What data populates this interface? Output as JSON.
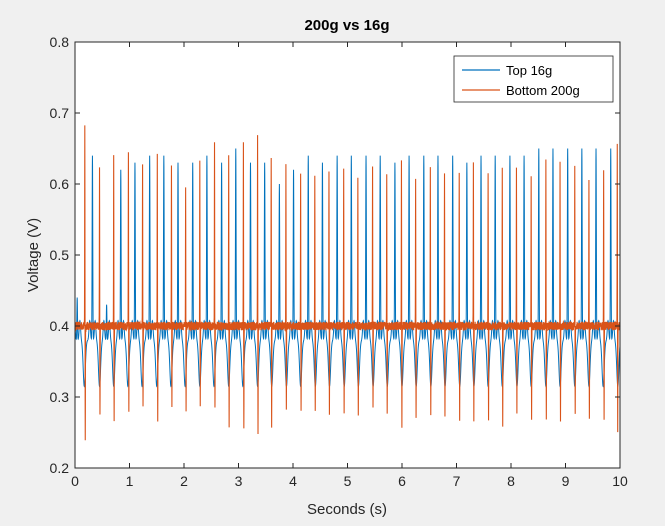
{
  "chart_data": {
    "type": "line",
    "title": "200g vs 16g",
    "xlabel": "Seconds (s)",
    "ylabel": "Voltage (V)",
    "xlim": [
      0,
      10
    ],
    "ylim": [
      0.2,
      0.8
    ],
    "xticks": [
      "0",
      "1",
      "2",
      "3",
      "4",
      "5",
      "6",
      "7",
      "8",
      "9",
      "10"
    ],
    "yticks": [
      "0.2",
      "0.3",
      "0.4",
      "0.5",
      "0.6",
      "0.7",
      "0.8"
    ],
    "grid": false,
    "legend": "top-right",
    "series": [
      {
        "name": "Top 16g",
        "color": "#0072BD",
        "baseline": 0.38,
        "trough": 0.315,
        "ripple_peak": 0.43,
        "peak_times": [
          0.04,
          0.32,
          0.58,
          0.84,
          1.1,
          1.37,
          1.63,
          1.89,
          2.16,
          2.42,
          2.69,
          2.95,
          3.22,
          3.48,
          3.75,
          4.01,
          4.28,
          4.54,
          4.81,
          5.07,
          5.34,
          5.6,
          5.87,
          6.13,
          6.4,
          6.66,
          6.93,
          7.19,
          7.45,
          7.71,
          7.98,
          8.24,
          8.51,
          8.77,
          9.04,
          9.3,
          9.56,
          9.83
        ],
        "peak_values": [
          0.44,
          0.64,
          0.43,
          0.62,
          0.63,
          0.64,
          0.64,
          0.63,
          0.63,
          0.64,
          0.63,
          0.65,
          0.63,
          0.63,
          0.6,
          0.62,
          0.64,
          0.63,
          0.64,
          0.64,
          0.64,
          0.64,
          0.63,
          0.64,
          0.64,
          0.64,
          0.64,
          0.63,
          0.64,
          0.64,
          0.64,
          0.64,
          0.65,
          0.65,
          0.65,
          0.65,
          0.65,
          0.65
        ]
      },
      {
        "name": "Bottom 200g",
        "color": "#D95319",
        "baseline": 0.4,
        "noise": 0.006,
        "spike_times": [
          0.18,
          0.45,
          0.71,
          0.98,
          1.24,
          1.51,
          1.77,
          2.03,
          2.29,
          2.56,
          2.82,
          3.09,
          3.35,
          3.6,
          3.87,
          4.14,
          4.4,
          4.66,
          4.93,
          5.19,
          5.46,
          5.72,
          5.99,
          6.25,
          6.52,
          6.78,
          7.05,
          7.31,
          7.58,
          7.84,
          8.1,
          8.37,
          8.64,
          8.9,
          9.17,
          9.43,
          9.7,
          9.95
        ],
        "spike_max": [
          0.68,
          0.63,
          0.64,
          0.64,
          0.63,
          0.64,
          0.63,
          0.6,
          0.63,
          0.66,
          0.64,
          0.66,
          0.67,
          0.64,
          0.63,
          0.61,
          0.61,
          0.62,
          0.62,
          0.61,
          0.62,
          0.62,
          0.63,
          0.61,
          0.62,
          0.62,
          0.62,
          0.63,
          0.62,
          0.62,
          0.62,
          0.61,
          0.63,
          0.63,
          0.63,
          0.61,
          0.62,
          0.66
        ],
        "spike_min": [
          0.24,
          0.27,
          0.27,
          0.28,
          0.28,
          0.27,
          0.29,
          0.28,
          0.29,
          0.28,
          0.26,
          0.25,
          0.25,
          0.25,
          0.28,
          0.28,
          0.28,
          0.27,
          0.28,
          0.27,
          0.28,
          0.27,
          0.26,
          0.27,
          0.27,
          0.27,
          0.27,
          0.27,
          0.27,
          0.26,
          0.28,
          0.27,
          0.27,
          0.27,
          0.27,
          0.27,
          0.27,
          0.25
        ]
      }
    ]
  }
}
